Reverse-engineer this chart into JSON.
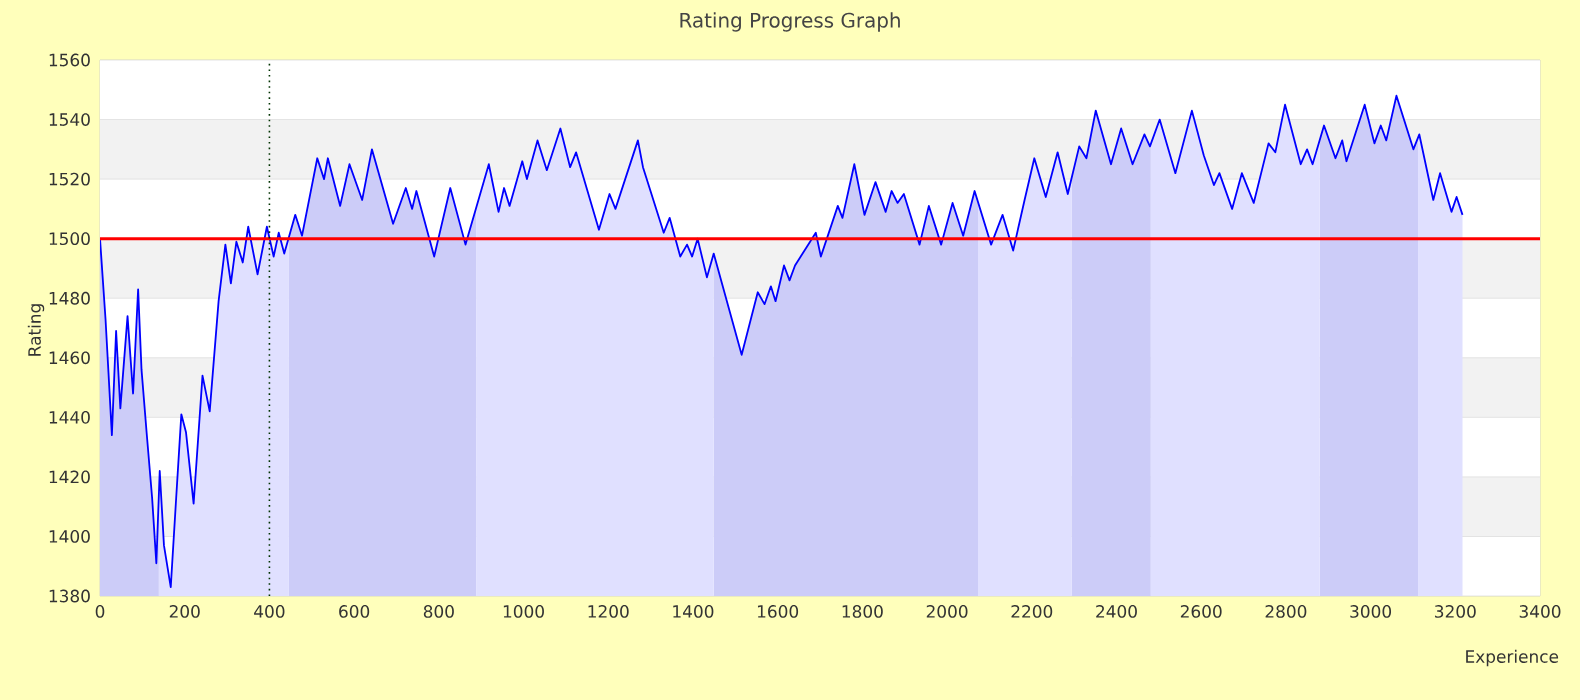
{
  "chart_data": {
    "type": "area",
    "title": "Rating Progress Graph",
    "xlabel": "Experience",
    "ylabel": "Rating",
    "xlim": [
      0,
      3400
    ],
    "xticks": [
      0,
      200,
      400,
      600,
      800,
      1000,
      1200,
      1400,
      1600,
      1800,
      2000,
      2200,
      2400,
      2600,
      2800,
      3000,
      3200,
      3400
    ],
    "ylim": [
      1380,
      1560
    ],
    "yticks": [
      1380,
      1400,
      1420,
      1440,
      1460,
      1480,
      1500,
      1520,
      1540,
      1560
    ],
    "grid": "y",
    "series": [
      {
        "color": "#0000ff",
        "x": [
          0,
          13,
          20,
          28,
          38,
          48,
          65,
          78,
          90,
          98,
          110,
          123,
          133,
          141,
          151,
          167,
          179,
          192,
          203,
          221,
          242,
          259,
          280,
          296,
          309,
          322,
          337,
          350,
          372,
          394,
          410,
          422,
          435,
          461,
          477,
          513,
          529,
          538,
          567,
          589,
          619,
          642,
          692,
          722,
          737,
          747,
          789,
          827,
          863,
          918,
          941,
          954,
          967,
          997,
          1008,
          1033,
          1055,
          1087,
          1110,
          1124,
          1178,
          1203,
          1217,
          1270,
          1282,
          1331,
          1345,
          1370,
          1386,
          1398,
          1411,
          1433,
          1449,
          1515,
          1553,
          1569,
          1584,
          1595,
          1615,
          1628,
          1641,
          1690,
          1702,
          1742,
          1753,
          1781,
          1805,
          1831,
          1855,
          1869,
          1883,
          1898,
          1935,
          1957,
          1986,
          2013,
          2038,
          2065,
          2104,
          2131,
          2156,
          2183,
          2206,
          2233,
          2261,
          2285,
          2312,
          2329,
          2351,
          2387,
          2411,
          2438,
          2466,
          2479,
          2502,
          2539,
          2578,
          2606,
          2630,
          2643,
          2673,
          2696,
          2724,
          2759,
          2775,
          2798,
          2835,
          2850,
          2863,
          2890,
          2917,
          2933,
          2943,
          2986,
          3009,
          3024,
          3037,
          3061,
          3101,
          3115,
          3148,
          3164,
          3191,
          3203,
          3217
        ],
        "values": [
          1500,
          1473,
          1455,
          1434,
          1469,
          1443,
          1474,
          1448,
          1483,
          1456,
          1435,
          1413,
          1391,
          1422,
          1397,
          1383,
          1411,
          1441,
          1435,
          1411,
          1454,
          1442,
          1479,
          1498,
          1485,
          1499,
          1492,
          1504,
          1488,
          1504,
          1494,
          1502,
          1495,
          1508,
          1501,
          1527,
          1520,
          1527,
          1511,
          1525,
          1513,
          1530,
          1505,
          1517,
          1510,
          1516,
          1494,
          1517,
          1498,
          1525,
          1509,
          1517,
          1511,
          1526,
          1520,
          1533,
          1523,
          1537,
          1524,
          1529,
          1503,
          1515,
          1510,
          1533,
          1524,
          1502,
          1507,
          1494,
          1498,
          1494,
          1500,
          1487,
          1495,
          1461,
          1482,
          1478,
          1484,
          1479,
          1491,
          1486,
          1491,
          1502,
          1494,
          1511,
          1507,
          1525,
          1508,
          1519,
          1509,
          1516,
          1512,
          1515,
          1498,
          1511,
          1498,
          1512,
          1501,
          1516,
          1498,
          1508,
          1496,
          1513,
          1527,
          1514,
          1529,
          1515,
          1531,
          1527,
          1543,
          1525,
          1537,
          1525,
          1535,
          1531,
          1540,
          1522,
          1543,
          1528,
          1518,
          1522,
          1510,
          1522,
          1512,
          1532,
          1529,
          1545,
          1525,
          1530,
          1525,
          1538,
          1527,
          1533,
          1526,
          1545,
          1532,
          1538,
          1533,
          1548,
          1530,
          1535,
          1513,
          1522,
          1509,
          1514,
          1508
        ]
      }
    ],
    "bands": [
      {
        "axis": "x",
        "from": 0,
        "to": 139,
        "color": "#ccccf8"
      },
      {
        "axis": "x",
        "from": 446,
        "to": 888,
        "color": "#ccccf8"
      },
      {
        "axis": "x",
        "from": 1449,
        "to": 2073,
        "color": "#ccccf8"
      },
      {
        "axis": "x",
        "from": 2294,
        "to": 2481,
        "color": "#ccccf8"
      },
      {
        "axis": "x",
        "from": 2880,
        "to": 3112,
        "color": "#ccccf8"
      }
    ],
    "ref_lines": [
      {
        "axis": "y",
        "value": 1500,
        "color": "#ff0000",
        "line_style": "solid"
      },
      {
        "axis": "x",
        "value": 400,
        "color": "#003300",
        "line_style": "dotted"
      }
    ]
  }
}
